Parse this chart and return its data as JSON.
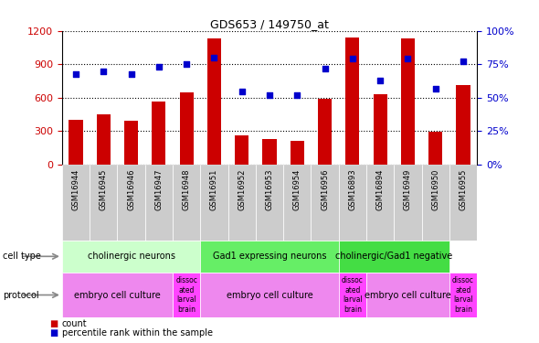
{
  "title": "GDS653 / 149750_at",
  "samples": [
    "GSM16944",
    "GSM16945",
    "GSM16946",
    "GSM16947",
    "GSM16948",
    "GSM16951",
    "GSM16952",
    "GSM16953",
    "GSM16954",
    "GSM16956",
    "GSM16893",
    "GSM16894",
    "GSM16949",
    "GSM16950",
    "GSM16955"
  ],
  "counts": [
    400,
    450,
    395,
    570,
    650,
    1130,
    260,
    230,
    215,
    590,
    1140,
    635,
    1130,
    295,
    710
  ],
  "percentiles": [
    68,
    70,
    68,
    73,
    75,
    80,
    55,
    52,
    52,
    72,
    79,
    63,
    79,
    57,
    77
  ],
  "ylim_left": [
    0,
    1200
  ],
  "ylim_right": [
    0,
    100
  ],
  "yticks_left": [
    0,
    300,
    600,
    900,
    1200
  ],
  "yticks_right": [
    0,
    25,
    50,
    75,
    100
  ],
  "bar_color": "#cc0000",
  "dot_color": "#0000cc",
  "cell_type_groups": [
    {
      "label": "cholinergic neurons",
      "start": 0,
      "end": 4,
      "color": "#ccffcc"
    },
    {
      "label": "Gad1 expressing neurons",
      "start": 5,
      "end": 9,
      "color": "#66ee66"
    },
    {
      "label": "cholinergic/Gad1 negative",
      "start": 10,
      "end": 13,
      "color": "#44dd44"
    }
  ],
  "protocol_groups": [
    {
      "label": "embryo cell culture",
      "start": 0,
      "end": 3,
      "color": "#ee88ee"
    },
    {
      "label": "dissoc\nated\nlarval\nbrain",
      "start": 4,
      "end": 4,
      "color": "#ff44ff"
    },
    {
      "label": "embryo cell culture",
      "start": 5,
      "end": 9,
      "color": "#ee88ee"
    },
    {
      "label": "dissoc\nated\nlarval\nbrain",
      "start": 10,
      "end": 10,
      "color": "#ff44ff"
    },
    {
      "label": "embryo cell culture",
      "start": 11,
      "end": 13,
      "color": "#ee88ee"
    },
    {
      "label": "dissoc\nated\nlarval\nbrain",
      "start": 14,
      "end": 14,
      "color": "#ff44ff"
    }
  ],
  "legend_items": [
    {
      "label": "count",
      "color": "#cc0000"
    },
    {
      "label": "percentile rank within the sample",
      "color": "#0000cc"
    }
  ],
  "sample_bg_color": "#cccccc",
  "tick_label_fontsize": 6.5,
  "bar_width": 0.5,
  "xlim": [
    -0.5,
    14.5
  ]
}
